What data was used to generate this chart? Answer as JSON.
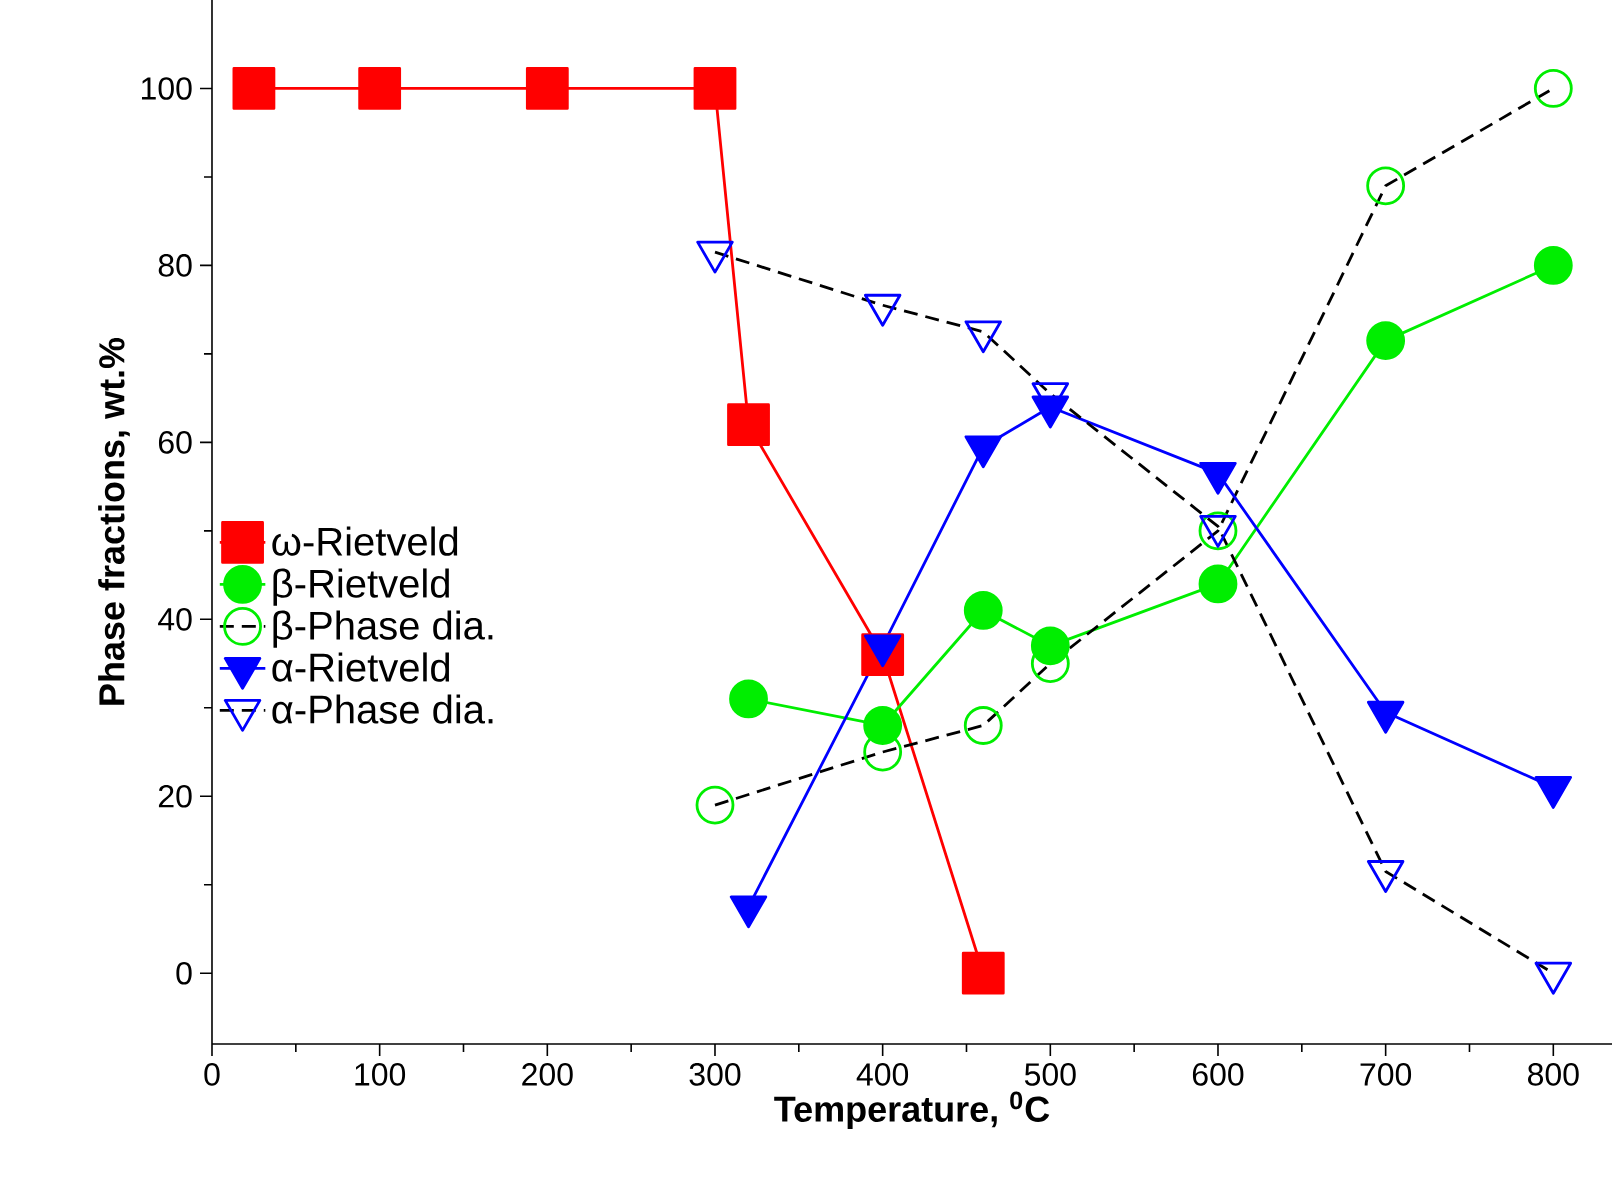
{
  "chart_data": {
    "type": "line",
    "xlabel": "Temperature, $^{0}$C",
    "ylabel": "Phase fractions, wt.%",
    "xlim": [
      0,
      835
    ],
    "ylim": [
      -8,
      110
    ],
    "xticks": [
      0,
      100,
      200,
      300,
      400,
      500,
      600,
      700,
      800
    ],
    "yticks": [
      0,
      20,
      40,
      60,
      80,
      100
    ],
    "grid": false,
    "legend": "left",
    "series": [
      {
        "name": "ω-Rietveld",
        "color": "#ff0000",
        "marker": "square",
        "line_style": "solid",
        "x": [
          25,
          100,
          200,
          300,
          320,
          400,
          460
        ],
        "values": [
          100,
          100,
          100,
          100,
          62,
          36,
          0
        ]
      },
      {
        "name": "β-Rietveld",
        "color": "#00ee00",
        "marker": "circle",
        "line_style": "solid",
        "x": [
          320,
          400,
          460,
          500,
          600,
          700,
          800
        ],
        "values": [
          31,
          28,
          41,
          37,
          44,
          71.5,
          80
        ]
      },
      {
        "name": "β-Phase dia.",
        "color": "#00ee00",
        "marker": "circle",
        "line_style": "dashed",
        "x": [
          300,
          400,
          460,
          500,
          600,
          700,
          800
        ],
        "values": [
          19,
          25,
          28,
          35,
          50,
          89,
          100
        ]
      },
      {
        "name": "α-Rietveld",
        "color": "#0000ff",
        "marker": "triangle",
        "line_style": "solid",
        "x": [
          320,
          400,
          460,
          500,
          600,
          700,
          800
        ],
        "values": [
          7.5,
          37,
          59.5,
          64,
          56.5,
          29.5,
          21
        ]
      },
      {
        "name": "α-Phase dia.",
        "color": "#0000ff",
        "marker": "triangle",
        "line_style": "dashed",
        "x": [
          300,
          400,
          460,
          500,
          600,
          700,
          800
        ],
        "values": [
          81.5,
          75.5,
          72.5,
          65.5,
          50.5,
          11.5,
          0
        ]
      }
    ]
  }
}
